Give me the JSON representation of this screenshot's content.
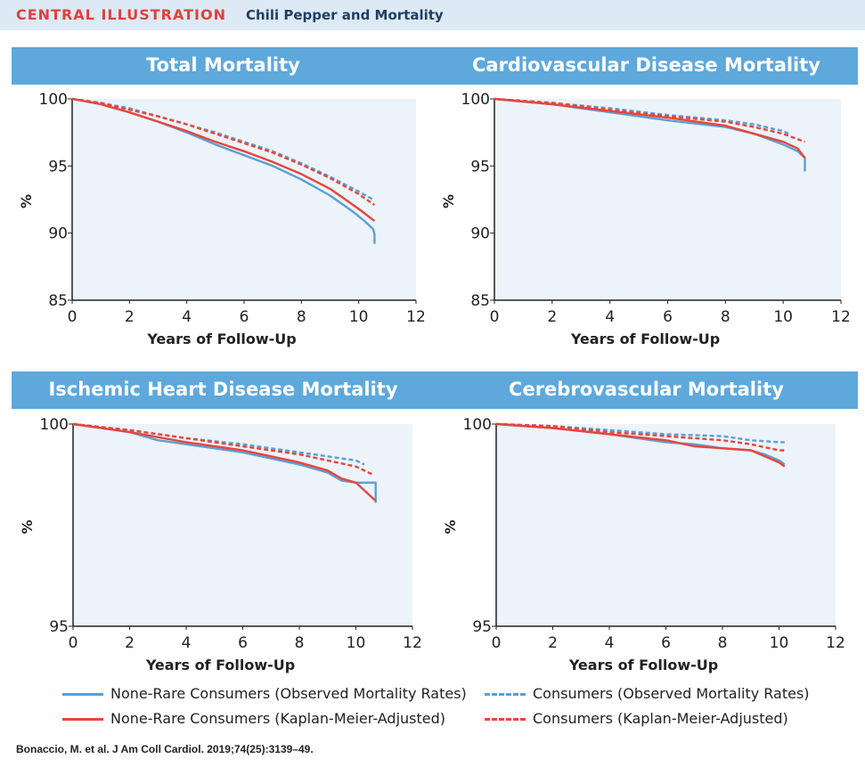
{
  "header": {
    "label": "CENTRAL ILLUSTRATION",
    "subtitle": "Chili Pepper and Mortality"
  },
  "colors": {
    "header_bg": "#dde9f5",
    "title_band": "#5ea8dc",
    "plot_bg": "#edf3fa",
    "blue": "#5b9fd6",
    "red": "#e8453c"
  },
  "legend": {
    "items": [
      {
        "label": "None-Rare Consumers (Observed Mortality Rates)",
        "color": "#5b9fd6",
        "style": "solid"
      },
      {
        "label": "Consumers (Observed Mortality Rates)",
        "color": "#5b9fd6",
        "style": "dashed"
      },
      {
        "label": "None-Rare Consumers (Kaplan-Meier-Adjusted)",
        "color": "#e8453c",
        "style": "solid"
      },
      {
        "label": "Consumers (Kaplan-Meier-Adjusted)",
        "color": "#e8453c",
        "style": "dashed"
      }
    ]
  },
  "citation": "Bonaccio, M. et al. J Am Coll Cardiol. 2019;74(25):3139–49.",
  "chart_data": [
    {
      "type": "line",
      "title": "Total Mortality",
      "xlabel": "Years of Follow-Up",
      "ylabel": "%",
      "xlim": [
        0,
        12
      ],
      "ylim": [
        85,
        100
      ],
      "xticks": [
        "0",
        "2",
        "4",
        "6",
        "8",
        "10",
        "12"
      ],
      "yticks": [
        "85",
        "90",
        "95",
        "100"
      ],
      "series": [
        {
          "name": "None-Rare Consumers (Observed Mortality Rates)",
          "x": [
            0,
            1,
            2,
            3,
            4,
            5,
            6,
            7,
            8,
            9,
            9.8,
            10.2,
            10.5,
            10.55,
            10.55
          ],
          "y": [
            100,
            99.6,
            99,
            98.3,
            97.5,
            96.6,
            95.8,
            95,
            94,
            92.8,
            91.6,
            90.9,
            90.3,
            89.9,
            89.2
          ]
        },
        {
          "name": "Consumers (Observed Mortality Rates)",
          "x": [
            0,
            1,
            2,
            3,
            4,
            5,
            6,
            7,
            8,
            9,
            10,
            10.5
          ],
          "y": [
            100,
            99.7,
            99.3,
            98.7,
            98.1,
            97.5,
            96.8,
            96.1,
            95.2,
            94.2,
            93.1,
            92.5
          ]
        },
        {
          "name": "None-Rare Consumers (Kaplan-Meier-Adjusted)",
          "x": [
            0,
            1,
            2,
            3,
            4,
            5,
            6,
            7,
            8,
            9,
            10,
            10.55
          ],
          "y": [
            100,
            99.6,
            99,
            98.3,
            97.6,
            96.8,
            96.1,
            95.3,
            94.4,
            93.3,
            91.8,
            90.9
          ]
        },
        {
          "name": "Consumers (Kaplan-Meier-Adjusted)",
          "x": [
            0,
            1,
            2,
            3,
            4,
            5,
            6,
            7,
            8,
            9,
            10,
            10.55
          ],
          "y": [
            100,
            99.7,
            99.2,
            98.7,
            98.1,
            97.4,
            96.7,
            96,
            95.1,
            94.1,
            92.9,
            92.1
          ]
        }
      ]
    },
    {
      "type": "line",
      "title": "Cardiovascular Disease Mortality",
      "xlabel": "Years of Follow-Up",
      "ylabel": "%",
      "xlim": [
        0,
        12
      ],
      "ylim": [
        85,
        100
      ],
      "xticks": [
        "0",
        "2",
        "4",
        "6",
        "8",
        "10",
        "12"
      ],
      "yticks": [
        "85",
        "90",
        "95",
        "100"
      ],
      "series": [
        {
          "name": "None-Rare Consumers (Observed Mortality Rates)",
          "x": [
            0,
            2,
            4,
            6,
            8,
            9,
            10,
            10.5,
            10.75,
            10.75
          ],
          "y": [
            100,
            99.6,
            99,
            98.4,
            97.9,
            97.4,
            96.6,
            96.1,
            95.6,
            94.6
          ]
        },
        {
          "name": "Consumers (Observed Mortality Rates)",
          "x": [
            0,
            2,
            4,
            6,
            8,
            9,
            10,
            10.2
          ],
          "y": [
            100,
            99.7,
            99.3,
            98.8,
            98.4,
            98.1,
            97.6,
            97.4
          ]
        },
        {
          "name": "None-Rare Consumers (Kaplan-Meier-Adjusted)",
          "x": [
            0,
            2,
            4,
            6,
            8,
            9,
            10,
            10.5,
            10.75
          ],
          "y": [
            100,
            99.6,
            99.1,
            98.6,
            98,
            97.4,
            96.8,
            96.3,
            95.6
          ]
        },
        {
          "name": "Consumers (Kaplan-Meier-Adjusted)",
          "x": [
            0,
            2,
            4,
            6,
            8,
            9,
            10,
            10.75
          ],
          "y": [
            100,
            99.7,
            99.2,
            98.7,
            98.3,
            97.9,
            97.4,
            96.8
          ]
        }
      ]
    },
    {
      "type": "line",
      "title": "Ischemic Heart Disease Mortality",
      "xlabel": "Years of Follow-Up",
      "ylabel": "%",
      "xlim": [
        0,
        12
      ],
      "ylim": [
        95,
        100
      ],
      "xticks": [
        "0",
        "2",
        "4",
        "6",
        "8",
        "10",
        "12"
      ],
      "yticks": [
        "95",
        "100"
      ],
      "series": [
        {
          "name": "None-Rare Consumers (Observed Mortality Rates)",
          "x": [
            0,
            2,
            3,
            4,
            6,
            8,
            9,
            9.5,
            10,
            10.7,
            10.7
          ],
          "y": [
            100,
            99.8,
            99.6,
            99.5,
            99.3,
            99,
            98.8,
            98.6,
            98.55,
            98.55,
            98.05
          ]
        },
        {
          "name": "Consumers (Observed Mortality Rates)",
          "x": [
            0,
            2,
            4,
            6,
            8,
            9,
            10,
            10.3
          ],
          "y": [
            100,
            99.85,
            99.65,
            99.5,
            99.3,
            99.2,
            99.1,
            99
          ]
        },
        {
          "name": "None-Rare Consumers (Kaplan-Meier-Adjusted)",
          "x": [
            0,
            2,
            4,
            6,
            8,
            9,
            9.5,
            10,
            10.7
          ],
          "y": [
            100,
            99.8,
            99.55,
            99.35,
            99.05,
            98.85,
            98.65,
            98.55,
            98.1
          ]
        },
        {
          "name": "Consumers (Kaplan-Meier-Adjusted)",
          "x": [
            0,
            2,
            4,
            6,
            8,
            9,
            10,
            10.6
          ],
          "y": [
            100,
            99.85,
            99.65,
            99.45,
            99.25,
            99.1,
            98.95,
            98.75
          ]
        }
      ]
    },
    {
      "type": "line",
      "title": "Cerebrovascular Mortality",
      "xlabel": "Years of Follow-Up",
      "ylabel": "%",
      "xlim": [
        0,
        12
      ],
      "ylim": [
        95,
        100
      ],
      "xticks": [
        "0",
        "2",
        "4",
        "6",
        "8",
        "10",
        "12"
      ],
      "yticks": [
        "95",
        "100"
      ],
      "series": [
        {
          "name": "None-Rare Consumers (Observed Mortality Rates)",
          "x": [
            0,
            2,
            4,
            6,
            7,
            8,
            9,
            9.5,
            10,
            10.2
          ],
          "y": [
            100,
            99.9,
            99.75,
            99.55,
            99.5,
            99.4,
            99.35,
            99.25,
            99.1,
            99
          ]
        },
        {
          "name": "Consumers (Observed Mortality Rates)",
          "x": [
            0,
            2,
            4,
            6,
            8,
            9,
            10,
            10.2
          ],
          "y": [
            100,
            99.95,
            99.85,
            99.75,
            99.7,
            99.6,
            99.55,
            99.55
          ]
        },
        {
          "name": "None-Rare Consumers (Kaplan-Meier-Adjusted)",
          "x": [
            0,
            2,
            4,
            6,
            7,
            8,
            9,
            9.5,
            10,
            10.2
          ],
          "y": [
            100,
            99.9,
            99.75,
            99.6,
            99.45,
            99.4,
            99.35,
            99.2,
            99.05,
            98.95
          ]
        },
        {
          "name": "Consumers (Kaplan-Meier-Adjusted)",
          "x": [
            0,
            2,
            4,
            6,
            8,
            9,
            10,
            10.2
          ],
          "y": [
            100,
            99.95,
            99.8,
            99.7,
            99.6,
            99.5,
            99.35,
            99.35
          ]
        }
      ]
    }
  ]
}
